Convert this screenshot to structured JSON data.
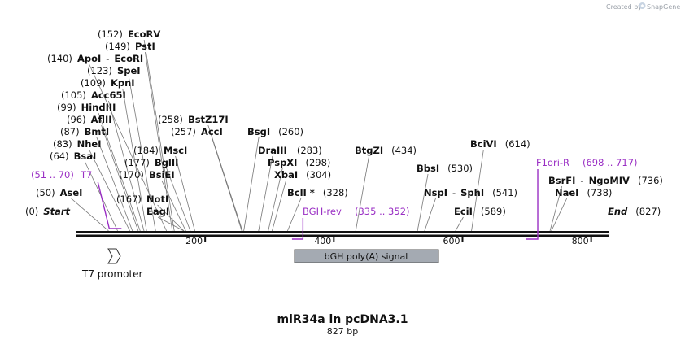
{
  "watermark": {
    "prefix": "Created by",
    "brand": "SnapGene",
    "logo": "snapgene-logo-icon"
  },
  "title": "miR34a in pcDNA3.1",
  "length_label": "827 bp",
  "sequence_length": 827,
  "axis_ticks": [
    {
      "bp": 200,
      "label": "200"
    },
    {
      "bp": 400,
      "label": "400"
    },
    {
      "bp": 600,
      "label": "600"
    },
    {
      "bp": 800,
      "label": "800"
    }
  ],
  "sites": [
    {
      "id": "start",
      "pos": "(0)",
      "name": "Start",
      "bp": 0,
      "italic": true,
      "end": true
    },
    {
      "id": "asei",
      "pos": "(50)",
      "name": "AseI",
      "bp": 50
    },
    {
      "id": "bsai",
      "pos": "(64)",
      "name": "BsaI",
      "bp": 64
    },
    {
      "id": "nhei",
      "pos": "(83)",
      "name": "NheI",
      "bp": 83
    },
    {
      "id": "bmti",
      "pos": "(87)",
      "name": "BmtI",
      "bp": 87
    },
    {
      "id": "afliii",
      "pos": "(96)",
      "name": "AflII",
      "bp": 96
    },
    {
      "id": "hindiii",
      "pos": "(99)",
      "name": "HindIII",
      "bp": 99
    },
    {
      "id": "acc65i",
      "pos": "(105)",
      "name": "Acc65I",
      "bp": 105
    },
    {
      "id": "kpni",
      "pos": "(109)",
      "name": "KpnI",
      "bp": 109
    },
    {
      "id": "spei",
      "pos": "(123)",
      "name": "SpeI",
      "bp": 123
    },
    {
      "id": "apoi",
      "pos": "(140)",
      "name": "ApoI",
      "bp": 140,
      "name2": "EcoRI"
    },
    {
      "id": "psti",
      "pos": "(149)",
      "name": "PstI",
      "bp": 149
    },
    {
      "id": "ecorv",
      "pos": "(152)",
      "name": "EcoRV",
      "bp": 152
    },
    {
      "id": "noti",
      "pos": "(167)",
      "name": "NotI",
      "bp": 167
    },
    {
      "id": "bsiei",
      "pos": "(170)",
      "name": "BsiEI",
      "bp": 170
    },
    {
      "id": "bglii",
      "pos": "(177)",
      "name": "BglII",
      "bp": 177
    },
    {
      "id": "msci",
      "pos": "(184)",
      "name": "MscI",
      "bp": 184
    },
    {
      "id": "eagi",
      "pos": "",
      "name": "EagI",
      "bp": 167
    },
    {
      "id": "acci",
      "pos": "(257)",
      "name": "AccI",
      "bp": 257
    },
    {
      "id": "bstz17i",
      "pos": "(258)",
      "name": "BstZ17I",
      "bp": 258
    },
    {
      "id": "bsgi",
      "pos": "(260)",
      "name": "BsgI",
      "bp": 260
    },
    {
      "id": "draiii",
      "pos": "(283)",
      "name": "DraIII",
      "bp": 283
    },
    {
      "id": "pspxi",
      "pos": "(298)",
      "name": "PspXI",
      "bp": 298
    },
    {
      "id": "xbai",
      "pos": "(304)",
      "name": "XbaI",
      "bp": 304
    },
    {
      "id": "bcli",
      "pos": "(328)",
      "name": "BclI *",
      "bp": 328
    },
    {
      "id": "btgzi",
      "pos": "(434)",
      "name": "BtgZI",
      "bp": 434
    },
    {
      "id": "bbsi",
      "pos": "(530)",
      "name": "BbsI",
      "bp": 530
    },
    {
      "id": "nspi",
      "pos": "(541)",
      "name": "NspI",
      "bp": 541,
      "name2": "SphI"
    },
    {
      "id": "ecii",
      "pos": "(589)",
      "name": "EciI",
      "bp": 589
    },
    {
      "id": "bcivi",
      "pos": "(614)",
      "name": "BciVI",
      "bp": 614
    },
    {
      "id": "bsrfi",
      "pos": "(736)",
      "name": "BsrFI",
      "bp": 736,
      "name2": "NgoMIV"
    },
    {
      "id": "naei",
      "pos": "(738)",
      "name": "NaeI",
      "bp": 738
    },
    {
      "id": "end",
      "pos": "(827)",
      "name": "End",
      "bp": 827,
      "italic": true,
      "end": true
    }
  ],
  "primers": [
    {
      "id": "t7",
      "name": "T7",
      "range": "(51 .. 70)",
      "start": 51,
      "end": 70,
      "color": "#9a2fc4"
    },
    {
      "id": "bgh-rev",
      "name": "BGH-rev",
      "range": "(335 .. 352)",
      "start": 335,
      "end": 352,
      "color": "#9a2fc4"
    },
    {
      "id": "f1ori-r",
      "name": "F1ori-R",
      "range": "(698 .. 717)",
      "start": 698,
      "end": 717,
      "color": "#9a2fc4"
    }
  ],
  "features": [
    {
      "id": "bgh-polya",
      "name": "bGH poly(A) signal",
      "start": 335,
      "end": 559,
      "color": "#a4aab2"
    }
  ],
  "promoters": [
    {
      "id": "t7-promoter",
      "name": "T7 promoter",
      "bp": 51
    }
  ]
}
